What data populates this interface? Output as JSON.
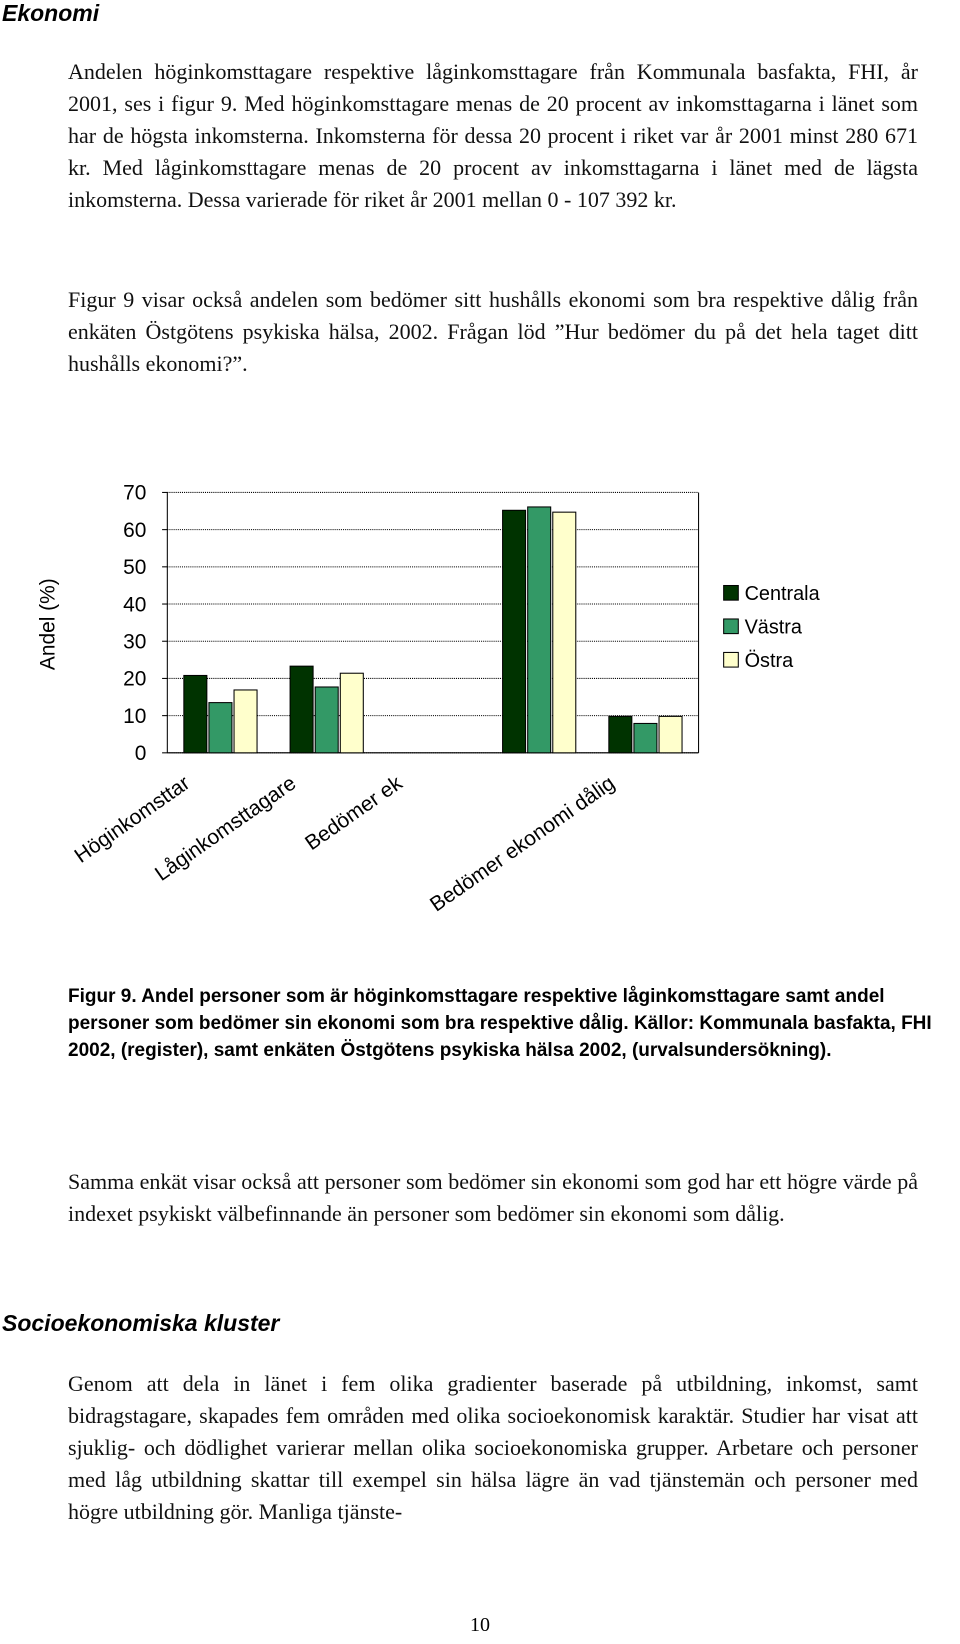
{
  "heading1": "Ekonomi",
  "intro": [
    "Andelen höginkomsttagare respektive låginkomsttagare från Kommunala basfakta, FHI, år 2001, ses i figur 9. Med höginkomsttagare menas de 20 procent av inkomsttagarna i länet som har de högsta inkomsterna. Inkomsterna för dessa 20 procent i riket var år 2001 minst 280 671 kr. Med låginkomsttagare menas de 20 procent av inkomsttagarna i länet med de lägsta inkomsterna. Dessa varierade för riket år 2001 mellan 0 - 107 392 kr.",
    "Figur 9 visar också andelen som bedömer sitt hushålls ekonomi som bra respektive dålig från enkäten Östgötens psykiska hälsa, 2002. Frågan löd ”Hur bedömer du på det hela taget ditt hushålls ekonomi?”."
  ],
  "chart_data": {
    "type": "bar",
    "y_label": "Andel (%)",
    "categories": [
      "Höginkomsttar",
      "Låginkomsttagare",
      "Bedömer ek",
      null,
      "Bedömer ekonomi dålig"
    ],
    "series": [
      {
        "name": "Centrala",
        "color": "#003300",
        "values": [
          20.8,
          23.3,
          null,
          65.2,
          9.8
        ]
      },
      {
        "name": "Västra",
        "color": "#339966",
        "values": [
          13.5,
          17.7,
          null,
          66.1,
          7.9
        ]
      },
      {
        "name": "Östra",
        "color": "#ffffcc",
        "values": [
          16.9,
          21.4,
          null,
          64.7,
          9.8
        ]
      }
    ],
    "ylim": [
      0,
      70
    ],
    "yticks": [
      0,
      10,
      20,
      30,
      40,
      50,
      60,
      70
    ],
    "grid": true,
    "legend": "right"
  },
  "caption": "Figur 9. Andel personer som är höginkomsttagare respektive låginkomsttagare samt andel personer som bedömer sin ekonomi som bra respektive dålig. Källor: Kommunala basfakta, FHI 2002, (register), samt enkäten Östgötens psykiska hälsa 2002, (urvalsundersökning).",
  "after_chart": "Samma enkät visar också att personer som bedömer sin ekonomi som god har ett högre värde på indexet psykiskt välbefinnande än personer som bedömer sin ekonomi som dålig.",
  "heading2": "Socioekonomiska kluster",
  "section2_text": "Genom att dela in länet i fem olika gradienter baserade på utbildning, inkomst, samt bidragstagare, skapades fem områden med olika socioekonomisk karaktär. Studier har visat att sjuklig- och dödlighet varierar mellan olika socioekonomiska grupper. Arbetare och personer med låg utbildning skattar till exempel sin hälsa lägre än vad tjänstemän och personer med högre utbildning gör. Manliga tjänste-",
  "page_number": "10"
}
